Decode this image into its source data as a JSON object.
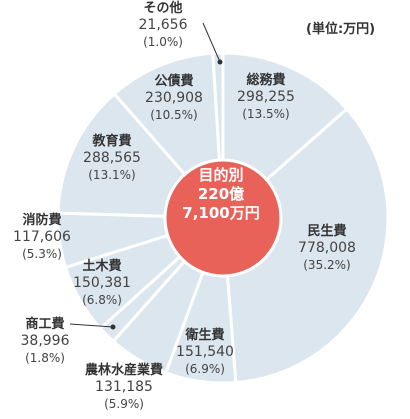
{
  "unit_label": "(単位:万円)",
  "center": {
    "line1": "目的別",
    "line2": "220億",
    "line3": "7,100万円"
  },
  "colors": {
    "slice": "#dbe6ef",
    "border": "#ffffff",
    "center": "#e8625a",
    "leader": "#333333"
  },
  "chart_data": {
    "type": "pie",
    "title": "",
    "slices": [
      {
        "name": "総務費",
        "value": 298255,
        "percent": "(13.5%)",
        "value_label": "298,255"
      },
      {
        "name": "民生費",
        "value": 778008,
        "percent": "(35.2%)",
        "value_label": "778,008"
      },
      {
        "name": "衛生費",
        "value": 151540,
        "percent": "(6.9%)",
        "value_label": "151,540"
      },
      {
        "name": "農林水産業費",
        "value": 131185,
        "percent": "(5.9%)",
        "value_label": "131,185"
      },
      {
        "name": "商工費",
        "value": 38996,
        "percent": "(1.8%)",
        "value_label": "38,996"
      },
      {
        "name": "土木費",
        "value": 150381,
        "percent": "(6.8%)",
        "value_label": "150,381"
      },
      {
        "name": "消防費",
        "value": 117606,
        "percent": "(5.3%)",
        "value_label": "117,606"
      },
      {
        "name": "教育費",
        "value": 288565,
        "percent": "(13.1%)",
        "value_label": "288,565"
      },
      {
        "name": "公債費",
        "value": 230908,
        "percent": "(10.5%)",
        "value_label": "230,908"
      },
      {
        "name": "その他",
        "value": 21656,
        "percent": "(1.0%)",
        "value_label": "21,656"
      }
    ]
  }
}
